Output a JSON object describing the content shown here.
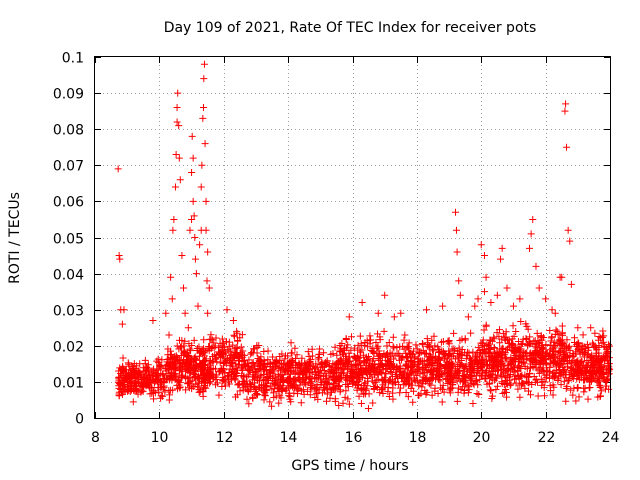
{
  "chart_data": {
    "type": "scatter",
    "title": "Day 109 of 2021, Rate Of TEC Index for receiver pots",
    "xlabel": "GPS time / hours",
    "ylabel": "ROTI / TECUs",
    "xlim": [
      8,
      24
    ],
    "ylim": [
      0,
      0.1
    ],
    "x_ticks": [
      8,
      10,
      12,
      14,
      16,
      18,
      20,
      22,
      24
    ],
    "x_tick_labels": [
      "8",
      "10",
      "12",
      "14",
      "16",
      "18",
      "20",
      "22",
      "24"
    ],
    "y_ticks": [
      0,
      0.01,
      0.02,
      0.03,
      0.04,
      0.05,
      0.06,
      0.07,
      0.08,
      0.09,
      0.1
    ],
    "y_tick_labels": [
      "0",
      "0.01",
      "0.02",
      "0.03",
      "0.04",
      "0.05",
      "0.06",
      "0.07",
      "0.08",
      "0.09",
      "0.1"
    ],
    "grid": true,
    "marker": "+",
    "marker_color": "#ff0000",
    "series": [
      {
        "name": "ROTI",
        "points": [
          [
            8.72,
            0.069
          ],
          [
            8.75,
            0.045
          ],
          [
            8.77,
            0.044
          ],
          [
            8.8,
            0.03
          ],
          [
            8.9,
            0.03
          ],
          [
            8.85,
            0.026
          ],
          [
            9.8,
            0.027
          ],
          [
            10.2,
            0.029
          ],
          [
            10.3,
            0.023
          ],
          [
            10.35,
            0.039
          ],
          [
            10.4,
            0.033
          ],
          [
            10.42,
            0.052
          ],
          [
            10.45,
            0.055
          ],
          [
            10.5,
            0.064
          ],
          [
            10.52,
            0.073
          ],
          [
            10.55,
            0.082
          ],
          [
            10.55,
            0.086
          ],
          [
            10.57,
            0.09
          ],
          [
            10.6,
            0.081
          ],
          [
            10.62,
            0.072
          ],
          [
            10.65,
            0.066
          ],
          [
            10.7,
            0.045
          ],
          [
            10.75,
            0.036
          ],
          [
            10.8,
            0.029
          ],
          [
            10.9,
            0.025
          ],
          [
            10.95,
            0.052
          ],
          [
            11.0,
            0.055
          ],
          [
            11.0,
            0.068
          ],
          [
            11.02,
            0.078
          ],
          [
            11.05,
            0.072
          ],
          [
            11.05,
            0.06
          ],
          [
            11.08,
            0.056
          ],
          [
            11.1,
            0.05
          ],
          [
            11.12,
            0.044
          ],
          [
            11.15,
            0.04
          ],
          [
            11.2,
            0.031
          ],
          [
            11.25,
            0.048
          ],
          [
            11.3,
            0.052
          ],
          [
            11.3,
            0.064
          ],
          [
            11.32,
            0.07
          ],
          [
            11.35,
            0.083
          ],
          [
            11.37,
            0.086
          ],
          [
            11.38,
            0.094
          ],
          [
            11.4,
            0.098
          ],
          [
            11.42,
            0.076
          ],
          [
            11.45,
            0.06
          ],
          [
            11.45,
            0.052
          ],
          [
            11.48,
            0.038
          ],
          [
            11.5,
            0.029
          ],
          [
            11.5,
            0.046
          ],
          [
            11.55,
            0.036
          ],
          [
            12.1,
            0.03
          ],
          [
            12.3,
            0.027
          ],
          [
            12.4,
            0.024
          ],
          [
            15.9,
            0.028
          ],
          [
            16.3,
            0.032
          ],
          [
            16.8,
            0.029
          ],
          [
            17.0,
            0.034
          ],
          [
            17.3,
            0.028
          ],
          [
            17.5,
            0.029
          ],
          [
            18.3,
            0.03
          ],
          [
            18.8,
            0.031
          ],
          [
            19.2,
            0.057
          ],
          [
            19.23,
            0.052
          ],
          [
            19.25,
            0.046
          ],
          [
            19.3,
            0.038
          ],
          [
            19.35,
            0.034
          ],
          [
            19.6,
            0.028
          ],
          [
            19.8,
            0.031
          ],
          [
            19.9,
            0.033
          ],
          [
            20.0,
            0.048
          ],
          [
            20.1,
            0.045
          ],
          [
            20.1,
            0.035
          ],
          [
            20.15,
            0.039
          ],
          [
            20.3,
            0.032
          ],
          [
            20.5,
            0.034
          ],
          [
            20.6,
            0.044
          ],
          [
            20.65,
            0.047
          ],
          [
            20.8,
            0.036
          ],
          [
            21.0,
            0.031
          ],
          [
            21.2,
            0.033
          ],
          [
            21.5,
            0.047
          ],
          [
            21.55,
            0.051
          ],
          [
            21.6,
            0.055
          ],
          [
            21.7,
            0.042
          ],
          [
            21.8,
            0.036
          ],
          [
            22.0,
            0.033
          ],
          [
            22.2,
            0.03
          ],
          [
            22.3,
            0.029
          ],
          [
            22.45,
            0.039
          ],
          [
            22.5,
            0.039
          ],
          [
            22.6,
            0.085
          ],
          [
            22.62,
            0.087
          ],
          [
            22.65,
            0.075
          ],
          [
            22.7,
            0.052
          ],
          [
            22.75,
            0.049
          ],
          [
            22.8,
            0.037
          ],
          [
            23.0,
            0.025
          ],
          [
            23.4,
            0.025
          ],
          [
            23.8,
            0.021
          ],
          [
            23.9,
            0.019
          ]
        ],
        "bands": [
          {
            "x": [
              8.72,
              10.2
            ],
            "y": [
              0.003,
              0.018
            ],
            "n": 260,
            "seed": 11
          },
          {
            "x": [
              10.2,
              11.6
            ],
            "y": [
              0.003,
              0.024
            ],
            "n": 300,
            "seed": 12
          },
          {
            "x": [
              11.6,
              12.6
            ],
            "y": [
              0.004,
              0.027
            ],
            "n": 170,
            "seed": 13
          },
          {
            "x": [
              12.6,
              15.6
            ],
            "y": [
              0.002,
              0.022
            ],
            "n": 520,
            "seed": 14
          },
          {
            "x": [
              15.6,
              18.2
            ],
            "y": [
              0.002,
              0.026
            ],
            "n": 470,
            "seed": 15
          },
          {
            "x": [
              18.2,
              20.0
            ],
            "y": [
              0.003,
              0.025
            ],
            "n": 340,
            "seed": 16
          },
          {
            "x": [
              20.0,
              22.6
            ],
            "y": [
              0.004,
              0.028
            ],
            "n": 520,
            "seed": 17
          },
          {
            "x": [
              22.6,
              24.0
            ],
            "y": [
              0.003,
              0.025
            ],
            "n": 300,
            "seed": 18
          }
        ]
      }
    ]
  }
}
